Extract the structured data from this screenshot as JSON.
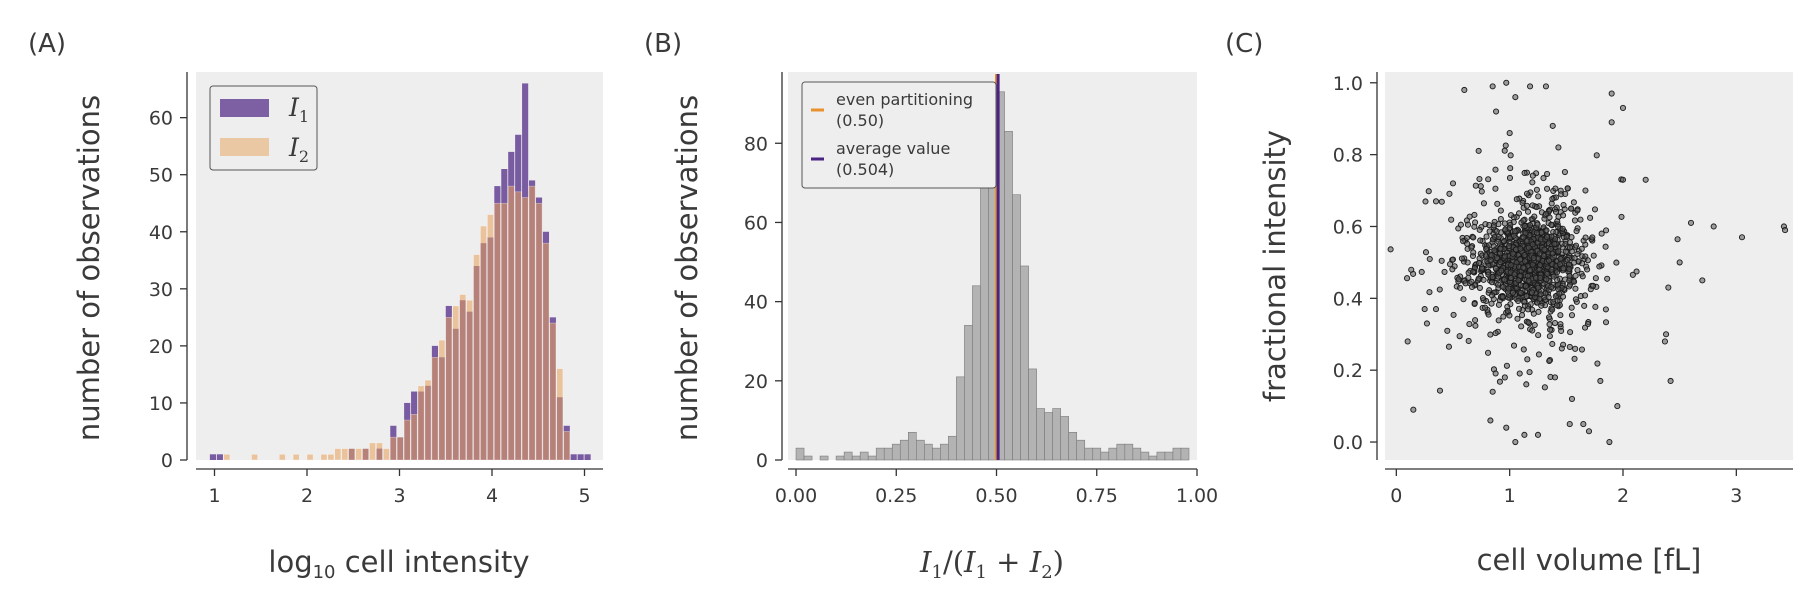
{
  "panels": [
    {
      "label": "(A)"
    },
    {
      "label": "(B)"
    },
    {
      "label": "(C)"
    }
  ],
  "chart_data": [
    {
      "type": "bar",
      "subtype": "histogram",
      "xlabel_parts": [
        "log",
        "10",
        " cell intensity"
      ],
      "ylabel": "number of observations",
      "xlim": [
        0.8,
        5.2
      ],
      "ylim": [
        0,
        68
      ],
      "xticks": [
        "1",
        "2",
        "3",
        "4",
        "5"
      ],
      "yticks": [
        "0",
        "10",
        "20",
        "30",
        "40",
        "50",
        "60"
      ],
      "bin_width": 0.075,
      "legend": {
        "position": "top-left",
        "entries": [
          {
            "symbol": "I",
            "sub": "1"
          },
          {
            "symbol": "I",
            "sub": "2"
          }
        ]
      },
      "colors": {
        "I1": "#4b2383",
        "I2": "#e8a15a",
        "background": "#eeeeee"
      },
      "series": [
        {
          "name": "I1",
          "bin_starts": [
            0.95,
            1.025,
            2.45,
            2.6,
            2.75,
            2.9,
            2.975,
            3.05,
            3.125,
            3.2,
            3.275,
            3.35,
            3.425,
            3.5,
            3.575,
            3.65,
            3.725,
            3.8,
            3.875,
            3.95,
            4.025,
            4.1,
            4.175,
            4.25,
            4.325,
            4.4,
            4.475,
            4.55,
            4.625,
            4.7,
            4.775,
            4.85,
            4.925,
            5.0
          ],
          "values": [
            1,
            1,
            2,
            2,
            2,
            6,
            4,
            10,
            12,
            12,
            13,
            20,
            18,
            27,
            23,
            28,
            26,
            34,
            38,
            39,
            48,
            51,
            54,
            57,
            66,
            49,
            46,
            40,
            25,
            11,
            6,
            1,
            1,
            1
          ]
        },
        {
          "name": "I2",
          "bin_starts": [
            1.1,
            1.4,
            1.7,
            1.85,
            2.0,
            2.15,
            2.225,
            2.3,
            2.375,
            2.45,
            2.525,
            2.6,
            2.675,
            2.75,
            2.825,
            2.9,
            2.975,
            3.05,
            3.125,
            3.2,
            3.275,
            3.35,
            3.425,
            3.5,
            3.575,
            3.65,
            3.725,
            3.8,
            3.875,
            3.95,
            4.025,
            4.1,
            4.175,
            4.25,
            4.325,
            4.4,
            4.475,
            4.55,
            4.625,
            4.7,
            4.775
          ],
          "values": [
            1,
            1,
            1,
            1,
            1,
            1,
            1,
            2,
            2,
            2,
            2,
            2,
            3,
            3,
            2,
            4,
            4,
            7,
            8,
            13,
            14,
            18,
            21,
            25,
            27,
            29,
            28,
            36,
            41,
            43,
            45,
            45,
            48,
            47,
            46,
            48,
            45,
            38,
            24,
            16,
            5
          ]
        }
      ]
    },
    {
      "type": "bar",
      "subtype": "histogram",
      "xlabel_parts": [
        "I",
        "1",
        "/(",
        "I",
        "1",
        " + ",
        "I",
        "2",
        ")"
      ],
      "ylabel": "number of observations",
      "xlim": [
        -0.02,
        1.0
      ],
      "ylim": [
        0,
        98
      ],
      "xticks": [
        "0.00",
        "0.25",
        "0.50",
        "0.75",
        "1.00"
      ],
      "yticks": [
        "0",
        "20",
        "40",
        "60",
        "80"
      ],
      "bin_width": 0.02,
      "bin_starts": [
        0.0,
        0.02,
        0.06,
        0.1,
        0.12,
        0.14,
        0.16,
        0.18,
        0.2,
        0.22,
        0.24,
        0.26,
        0.28,
        0.3,
        0.32,
        0.34,
        0.36,
        0.38,
        0.4,
        0.42,
        0.44,
        0.46,
        0.48,
        0.5,
        0.52,
        0.54,
        0.56,
        0.58,
        0.6,
        0.62,
        0.64,
        0.66,
        0.68,
        0.7,
        0.72,
        0.74,
        0.76,
        0.78,
        0.8,
        0.82,
        0.84,
        0.86,
        0.88,
        0.9,
        0.92,
        0.94,
        0.96
      ],
      "values": [
        3,
        1,
        1,
        1,
        2,
        1,
        2,
        1,
        3,
        3,
        4,
        5,
        7,
        5,
        4,
        3,
        4,
        6,
        21,
        34,
        44,
        72,
        84,
        93,
        83,
        67,
        49,
        23,
        13,
        12,
        13,
        11,
        7,
        5,
        3,
        3,
        2,
        3,
        4,
        4,
        3,
        2,
        1,
        2,
        2,
        3,
        3
      ],
      "reference_lines": [
        {
          "label": "even partitioning",
          "value_text": "(0.50)",
          "x": 0.5,
          "color": "#e8912d"
        },
        {
          "label": "average value",
          "value_text": "(0.504)",
          "x": 0.504,
          "color": "#4b2383"
        }
      ],
      "legend": {
        "position": "top-left"
      },
      "colors": {
        "bar": "#b3b3b3",
        "bar_edge": "#7a7a7a",
        "background": "#eeeeee"
      }
    },
    {
      "type": "scatter",
      "xlabel": "cell volume [fL]",
      "ylabel": "fractional intensity",
      "xlim": [
        -0.1,
        3.5
      ],
      "ylim": [
        -0.05,
        1.03
      ],
      "xticks": [
        "0",
        "1",
        "2",
        "3"
      ],
      "yticks": [
        "0.0",
        "0.2",
        "0.4",
        "0.6",
        "0.8",
        "1.0"
      ],
      "core": {
        "x_center": 1.15,
        "x_sd": 0.22,
        "y_center": 0.5,
        "y_sd": 0.06,
        "count": 900
      },
      "halo": {
        "x_center": 1.2,
        "x_sd": 0.4,
        "y_center": 0.5,
        "y_sd": 0.15,
        "count": 350
      },
      "points": [
        {
          "x": 0.6,
          "y": 0.98
        },
        {
          "x": 0.85,
          "y": 0.99
        },
        {
          "x": 0.97,
          "y": 1.0
        },
        {
          "x": 1.05,
          "y": 0.96
        },
        {
          "x": 1.18,
          "y": 0.99
        },
        {
          "x": 1.32,
          "y": 0.99
        },
        {
          "x": 1.9,
          "y": 0.97
        },
        {
          "x": 2.0,
          "y": 0.93
        },
        {
          "x": 1.9,
          "y": 0.89
        },
        {
          "x": 1.38,
          "y": 0.88
        },
        {
          "x": 0.35,
          "y": 0.67
        },
        {
          "x": 0.5,
          "y": 0.72
        },
        {
          "x": 0.88,
          "y": 0.92
        },
        {
          "x": 1.0,
          "y": 0.86
        },
        {
          "x": 1.43,
          "y": 0.82
        },
        {
          "x": 2.2,
          "y": 0.73
        },
        {
          "x": 2.0,
          "y": 0.73
        },
        {
          "x": 2.6,
          "y": 0.61
        },
        {
          "x": 2.8,
          "y": 0.6
        },
        {
          "x": 3.05,
          "y": 0.57
        },
        {
          "x": 3.42,
          "y": 0.6
        },
        {
          "x": 3.43,
          "y": 0.59
        },
        {
          "x": 2.5,
          "y": 0.5
        },
        {
          "x": 2.7,
          "y": 0.45
        },
        {
          "x": 2.4,
          "y": 0.43
        },
        {
          "x": 2.38,
          "y": 0.3
        },
        {
          "x": 2.37,
          "y": 0.28
        },
        {
          "x": 2.42,
          "y": 0.17
        },
        {
          "x": 1.8,
          "y": 0.17
        },
        {
          "x": 0.1,
          "y": 0.28
        },
        {
          "x": 0.15,
          "y": 0.09
        },
        {
          "x": 0.27,
          "y": 0.33
        },
        {
          "x": 0.25,
          "y": 0.37
        },
        {
          "x": 0.35,
          "y": 0.37
        },
        {
          "x": 0.83,
          "y": 0.06
        },
        {
          "x": 0.97,
          "y": 0.04
        },
        {
          "x": 1.05,
          "y": 0.0
        },
        {
          "x": 1.13,
          "y": 0.02
        },
        {
          "x": 1.25,
          "y": 0.02
        },
        {
          "x": 1.53,
          "y": 0.05
        },
        {
          "x": 1.65,
          "y": 0.05
        },
        {
          "x": 1.7,
          "y": 0.03
        },
        {
          "x": 1.88,
          "y": 0.0
        },
        {
          "x": 1.95,
          "y": 0.1
        },
        {
          "x": 1.55,
          "y": 0.12
        },
        {
          "x": 0.85,
          "y": 0.14
        },
        {
          "x": 1.4,
          "y": 0.18
        }
      ],
      "colors": {
        "point": "#1a1a1a",
        "point_fill": "#5a5a5a",
        "background": "#eeeeee"
      }
    }
  ]
}
